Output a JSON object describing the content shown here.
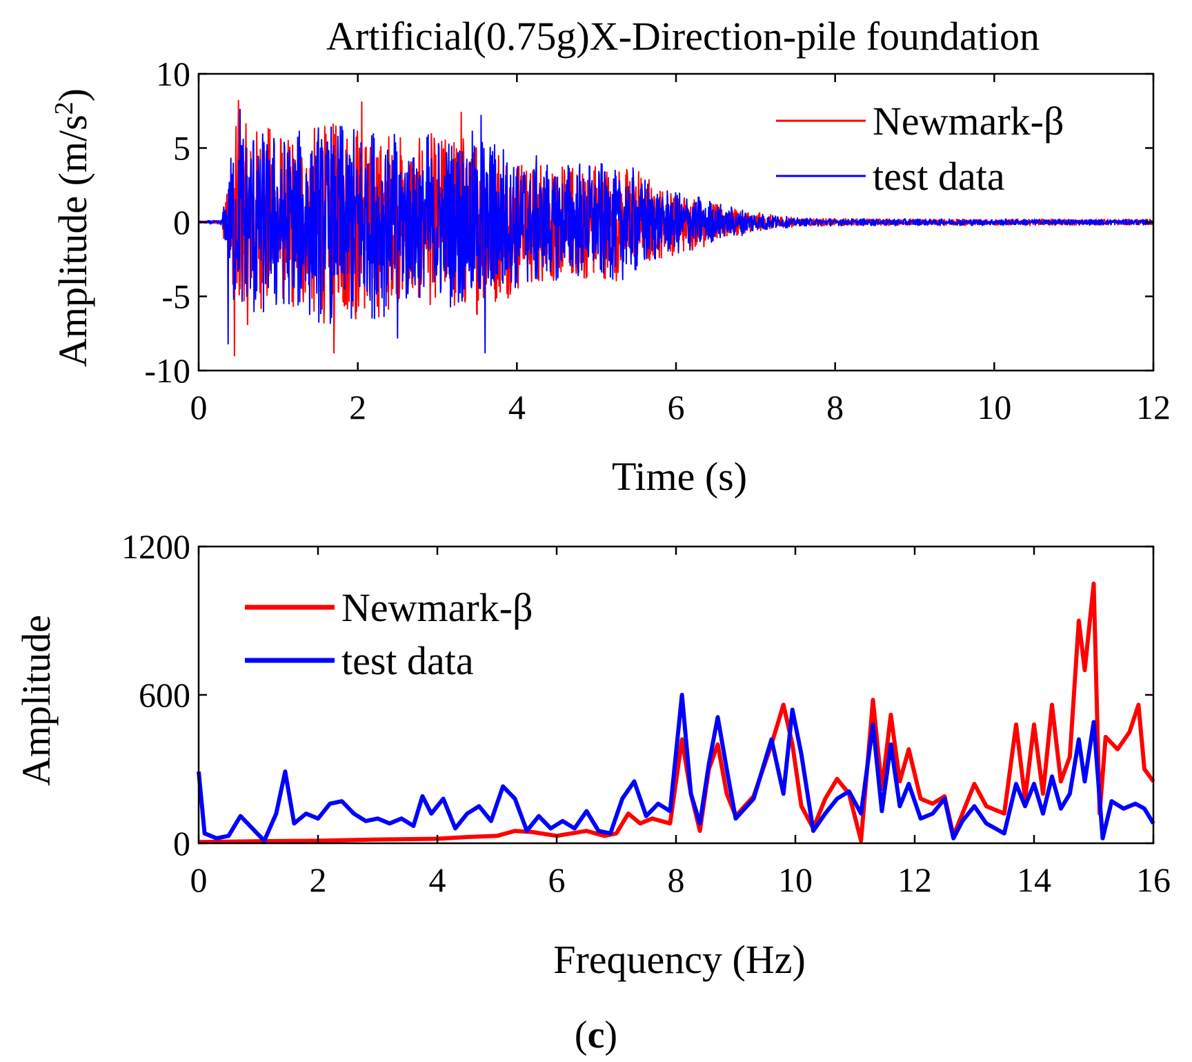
{
  "colors": {
    "newmark": "#ff0000",
    "test": "#0000ff",
    "axis": "#000000",
    "background": "#ffffff"
  },
  "caption": {
    "open": "(",
    "letter": "c",
    "close": ")"
  },
  "chart_data": [
    {
      "id": "time-history",
      "type": "line",
      "title": "Artificial(0.75g)X-Direction-pile foundation",
      "xlabel": "Time (s)",
      "ylabel_main": "Amplitude (m/s",
      "ylabel_sup": "2",
      "ylabel_close": ")",
      "xlim": [
        0,
        12
      ],
      "ylim": [
        -10,
        10
      ],
      "xticks": [
        0,
        2,
        4,
        6,
        8,
        10,
        12
      ],
      "yticks": [
        -10,
        -5,
        0,
        5,
        10
      ],
      "xtick_labels": [
        "0",
        "2",
        "4",
        "6",
        "8",
        "10",
        "12"
      ],
      "ytick_labels": [
        "-10",
        "-5",
        "0",
        "5",
        "10"
      ],
      "grid": false,
      "legend_position": "top-right",
      "legend": [
        "Newmark-β",
        "test data"
      ],
      "signal_description": {
        "onset_s": 0.3,
        "strong_motion_end_s": 7.0,
        "peak_newmark": 8.2,
        "min_newmark": -9.0,
        "peak_test": 7.6,
        "min_test": -8.8,
        "envelope": [
          [
            0.0,
            0.2
          ],
          [
            0.3,
            0.6
          ],
          [
            0.45,
            6.5
          ],
          [
            0.6,
            7.0
          ],
          [
            1.0,
            6.5
          ],
          [
            1.5,
            6.8
          ],
          [
            2.0,
            7.2
          ],
          [
            2.5,
            6.0
          ],
          [
            3.0,
            6.2
          ],
          [
            3.6,
            6.5
          ],
          [
            4.0,
            4.8
          ],
          [
            4.5,
            4.2
          ],
          [
            5.0,
            4.2
          ],
          [
            5.5,
            3.8
          ],
          [
            5.8,
            2.5
          ],
          [
            6.2,
            2.0
          ],
          [
            6.6,
            1.2
          ],
          [
            7.0,
            0.7
          ],
          [
            7.5,
            0.3
          ],
          [
            8.0,
            0.25
          ],
          [
            12.0,
            0.2
          ]
        ],
        "spikes_newmark": [
          [
            0.5,
            8.2
          ],
          [
            0.45,
            -9.0
          ],
          [
            1.7,
            -8.8
          ],
          [
            2.05,
            8.1
          ],
          [
            3.3,
            7.4
          ]
        ],
        "spikes_test": [
          [
            0.52,
            7.6
          ],
          [
            0.37,
            -8.2
          ],
          [
            3.6,
            -8.8
          ],
          [
            3.55,
            7.2
          ],
          [
            2.5,
            -7.8
          ]
        ]
      }
    },
    {
      "id": "fourier-spectrum",
      "type": "line",
      "title": "",
      "xlabel": "Frequency (Hz)",
      "ylabel": "Amplitude",
      "xlim": [
        0,
        16
      ],
      "ylim": [
        0,
        1200
      ],
      "xticks": [
        0,
        2,
        4,
        6,
        8,
        10,
        12,
        14,
        16
      ],
      "yticks": [
        0,
        600,
        1200
      ],
      "xtick_labels": [
        "0",
        "2",
        "4",
        "6",
        "8",
        "10",
        "12",
        "14",
        "16"
      ],
      "ytick_labels": [
        "0",
        "600",
        "1200"
      ],
      "grid": false,
      "legend_position": "top-left",
      "legend": [
        "Newmark-β",
        "test data"
      ],
      "series": [
        {
          "name": "Newmark-β",
          "x": [
            0,
            1,
            2,
            3,
            4,
            4.5,
            5,
            5.3,
            5.6,
            6,
            6.5,
            6.8,
            7.0,
            7.2,
            7.4,
            7.6,
            7.9,
            8.1,
            8.25,
            8.4,
            8.55,
            8.7,
            8.85,
            9.0,
            9.3,
            9.6,
            9.8,
            9.95,
            10.1,
            10.3,
            10.5,
            10.7,
            10.9,
            11.1,
            11.3,
            11.45,
            11.6,
            11.75,
            11.9,
            12.1,
            12.3,
            12.5,
            12.65,
            12.8,
            13.0,
            13.2,
            13.5,
            13.7,
            13.85,
            14.0,
            14.15,
            14.3,
            14.45,
            14.6,
            14.75,
            14.85,
            15.0,
            15.1,
            15.2,
            15.4,
            15.6,
            15.75,
            15.85,
            16.0
          ],
          "y": [
            5,
            8,
            10,
            15,
            18,
            25,
            30,
            50,
            45,
            30,
            50,
            30,
            40,
            120,
            80,
            100,
            80,
            420,
            200,
            50,
            300,
            400,
            200,
            110,
            190,
            400,
            560,
            400,
            150,
            60,
            180,
            260,
            200,
            10,
            580,
            220,
            520,
            250,
            380,
            180,
            160,
            190,
            30,
            120,
            240,
            150,
            120,
            480,
            180,
            480,
            200,
            560,
            250,
            350,
            900,
            700,
            1050,
            120,
            430,
            380,
            450,
            560,
            300,
            250
          ]
        },
        {
          "name": "test data",
          "x": [
            0,
            0.1,
            0.3,
            0.5,
            0.7,
            0.9,
            1.1,
            1.3,
            1.45,
            1.6,
            1.8,
            2.0,
            2.2,
            2.4,
            2.6,
            2.8,
            3.0,
            3.2,
            3.4,
            3.6,
            3.75,
            3.9,
            4.1,
            4.3,
            4.5,
            4.7,
            4.9,
            5.1,
            5.3,
            5.5,
            5.7,
            5.9,
            6.1,
            6.3,
            6.5,
            6.7,
            6.9,
            7.1,
            7.3,
            7.5,
            7.7,
            7.9,
            8.1,
            8.25,
            8.4,
            8.55,
            8.7,
            8.85,
            9.0,
            9.3,
            9.6,
            9.8,
            9.95,
            10.1,
            10.3,
            10.5,
            10.7,
            10.9,
            11.1,
            11.3,
            11.45,
            11.6,
            11.75,
            11.9,
            12.1,
            12.3,
            12.5,
            12.65,
            12.8,
            13.0,
            13.2,
            13.5,
            13.7,
            13.85,
            14.0,
            14.15,
            14.3,
            14.45,
            14.6,
            14.75,
            14.85,
            15.0,
            15.15,
            15.3,
            15.5,
            15.7,
            15.85,
            16.0
          ],
          "y": [
            290,
            40,
            20,
            30,
            110,
            60,
            10,
            120,
            290,
            80,
            120,
            100,
            160,
            170,
            120,
            90,
            100,
            80,
            100,
            70,
            190,
            120,
            180,
            60,
            120,
            150,
            90,
            230,
            180,
            50,
            110,
            60,
            90,
            60,
            130,
            50,
            40,
            180,
            250,
            110,
            160,
            130,
            600,
            200,
            80,
            320,
            510,
            300,
            100,
            180,
            420,
            200,
            540,
            360,
            50,
            120,
            180,
            210,
            120,
            480,
            130,
            400,
            150,
            240,
            100,
            120,
            180,
            20,
            90,
            150,
            80,
            40,
            240,
            150,
            240,
            120,
            270,
            140,
            200,
            420,
            250,
            490,
            20,
            170,
            140,
            160,
            140,
            80
          ]
        }
      ]
    }
  ]
}
